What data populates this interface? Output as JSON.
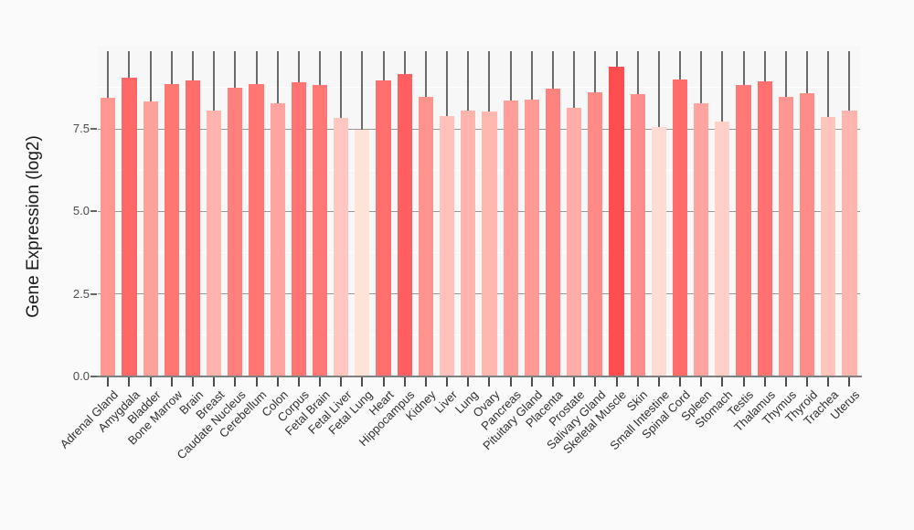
{
  "figure": {
    "background": "#fafafa"
  },
  "chart_data": {
    "type": "bar",
    "title": "",
    "xlabel": "",
    "ylabel": "Gene Expression (log2)",
    "legend_position": "none",
    "grid": true,
    "categories": [
      "Adrenal Gland",
      "Amygdala",
      "Bladder",
      "Bone Marrow",
      "Brain",
      "Breast",
      "Caudate Nucleus",
      "Cerebellum",
      "Colon",
      "Corpus",
      "Fetal Brain",
      "Fetal Liver",
      "Fetal Lung",
      "Heart",
      "Hippocampus",
      "Kidney",
      "Liver",
      "Lung",
      "Ovary",
      "Pancreas",
      "Pituitary Gland",
      "Placenta",
      "Prostate",
      "Salivary Gland",
      "Skeletal Muscle",
      "Skin",
      "Small Intestine",
      "Spinal Cord",
      "Spleen",
      "Stomach",
      "Testis",
      "Thalamus",
      "Thymus",
      "Thyroid",
      "Trachea",
      "Uterus"
    ],
    "values": [
      8.45,
      9.05,
      8.32,
      8.87,
      8.98,
      8.05,
      8.75,
      8.87,
      8.28,
      8.91,
      8.84,
      7.82,
      7.48,
      8.96,
      9.16,
      8.48,
      7.9,
      8.06,
      8.03,
      8.36,
      8.39,
      8.72,
      8.15,
      8.61,
      9.39,
      8.56,
      7.55,
      9.0,
      8.28,
      7.71,
      8.82,
      8.94,
      8.47,
      8.59,
      7.85,
      8.05
    ],
    "error_bar_top": 9.85,
    "ylim": [
      0,
      9.85
    ],
    "ytick_values": [
      0,
      2.5,
      5.0,
      7.5
    ],
    "ytick_labels": [
      "0.0",
      "2.5",
      "5.0",
      "7.5"
    ],
    "minor_grid_values": [
      1.25,
      3.75,
      6.25,
      8.75
    ],
    "colors": {
      "bar_gradient_low": "#ffe4da",
      "bar_gradient_high": "#ff4949",
      "bar_gradient_domain": [
        7.45,
        9.45
      ],
      "major_grid": "#999999",
      "minor_grid": "#ffffff",
      "axis_line": "#808080",
      "tick_mark": "#4d4d4d",
      "error_whisker": "#6b6b6b",
      "ytick_text": "#4d4d4d",
      "xtick_text": "#303030",
      "axis_title_text": "#1a1a1a",
      "panel_bg": "#f7f7f7",
      "page_bg": "#fafafa"
    }
  }
}
